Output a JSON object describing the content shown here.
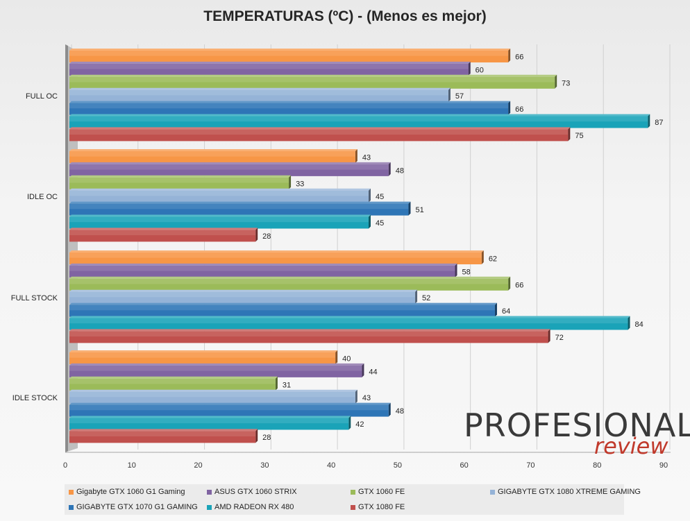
{
  "chart_data": {
    "type": "bar",
    "orientation": "horizontal",
    "title": "TEMPERATURAS (ºC) - (Menos es mejor)",
    "xlim": [
      0,
      90
    ],
    "xticks": [
      0,
      10,
      20,
      30,
      40,
      50,
      60,
      70,
      80,
      90
    ],
    "grid": true,
    "legend_position": "bottom",
    "categories": [
      "FULL OC",
      "IDLE OC",
      "FULL STOCK",
      "IDLE STOCK"
    ],
    "series": [
      {
        "name": "Gigabyte GTX 1060 G1 Gaming",
        "color": "#f79646",
        "values": [
          66,
          43,
          62,
          40
        ]
      },
      {
        "name": "ASUS GTX 1060 STRIX",
        "color": "#8064a2",
        "values": [
          60,
          48,
          58,
          44
        ]
      },
      {
        "name": "GTX 1060 FE",
        "color": "#9bbb59",
        "values": [
          73,
          33,
          66,
          31
        ]
      },
      {
        "name": "GIGABYTE GTX 1080 XTREME GAMING",
        "color": "#95b3d7",
        "values": [
          57,
          45,
          52,
          43
        ]
      },
      {
        "name": "GIGABYTE GTX 1070 G1 GAMING",
        "color": "#2e75b6",
        "values": [
          66,
          51,
          64,
          48
        ]
      },
      {
        "name": "AMD RADEON RX 480",
        "color": "#1aa3b8",
        "values": [
          87,
          45,
          84,
          42
        ]
      },
      {
        "name": "GTX 1080 FE",
        "color": "#c0504d",
        "values": [
          75,
          28,
          72,
          28
        ]
      }
    ]
  },
  "watermark": {
    "line1": "PROFESIONAL",
    "line2": "review"
  }
}
